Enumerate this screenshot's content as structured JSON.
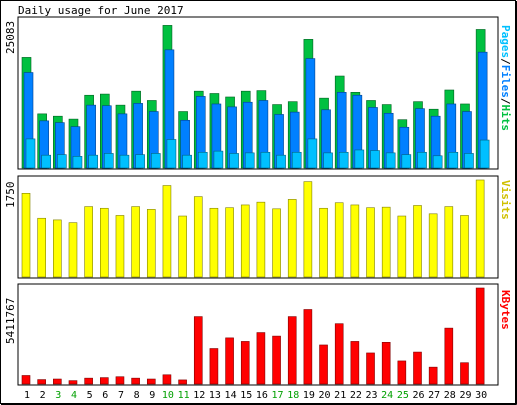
{
  "chart_data": [
    {
      "type": "bar",
      "panel": "hits-files-pages",
      "title": "Daily usage for June 2017",
      "ymax_label": "25083",
      "ylim": [
        0,
        25083
      ],
      "side_label": {
        "pages": "Pages",
        "files": "Files",
        "hits": "Hits",
        "sep": "/"
      },
      "colors": {
        "hits": "#00c040",
        "files": "#0080ff",
        "pages": "#00c0ff"
      },
      "categories": [
        "1",
        "2",
        "3",
        "4",
        "5",
        "6",
        "7",
        "8",
        "9",
        "10",
        "11",
        "12",
        "13",
        "14",
        "15",
        "16",
        "17",
        "18",
        "19",
        "20",
        "21",
        "22",
        "23",
        "24",
        "25",
        "26",
        "27",
        "28",
        "29",
        "30"
      ],
      "weekend_days": [
        "3",
        "4",
        "10",
        "11",
        "17",
        "18",
        "24",
        "25"
      ],
      "series": [
        {
          "key": "hits",
          "name": "Hits",
          "values": [
            19000,
            9300,
            8900,
            8400,
            12500,
            12700,
            10800,
            13200,
            11600,
            24500,
            9700,
            13200,
            12800,
            12200,
            13200,
            13300,
            10900,
            11400,
            22100,
            12000,
            15800,
            13000,
            11600,
            10900,
            8300,
            11400,
            10100,
            13400,
            11000,
            23800
          ]
        },
        {
          "key": "files",
          "name": "Files",
          "values": [
            16400,
            8100,
            7800,
            7100,
            10800,
            10700,
            9300,
            11100,
            9700,
            20300,
            8200,
            12300,
            11000,
            10500,
            11300,
            11600,
            9200,
            9600,
            18800,
            10000,
            13000,
            12500,
            10400,
            9400,
            7000,
            10200,
            8900,
            11000,
            9700,
            19900
          ]
        },
        {
          "key": "pages",
          "name": "Pages",
          "values": [
            5000,
            2200,
            2300,
            2000,
            2200,
            2500,
            2200,
            2300,
            2500,
            4900,
            2200,
            2700,
            2900,
            2500,
            2600,
            2700,
            2200,
            2700,
            5000,
            2600,
            2700,
            3100,
            3000,
            2600,
            2300,
            2700,
            2100,
            2700,
            2500,
            4800
          ]
        }
      ]
    },
    {
      "type": "bar",
      "panel": "visits",
      "ymax_label": "1750",
      "ylim": [
        0,
        1750
      ],
      "side_label": "Visits",
      "colors": {
        "visits": "#ffff00"
      },
      "categories": [
        "1",
        "2",
        "3",
        "4",
        "5",
        "6",
        "7",
        "8",
        "9",
        "10",
        "11",
        "12",
        "13",
        "14",
        "15",
        "16",
        "17",
        "18",
        "19",
        "20",
        "21",
        "22",
        "23",
        "24",
        "25",
        "26",
        "27",
        "28",
        "29",
        "30"
      ],
      "series": [
        {
          "key": "visits",
          "name": "Visits",
          "values": [
            1510,
            1060,
            1030,
            980,
            1270,
            1240,
            1110,
            1270,
            1220,
            1650,
            1100,
            1450,
            1240,
            1250,
            1300,
            1350,
            1230,
            1400,
            1720,
            1240,
            1340,
            1300,
            1250,
            1260,
            1100,
            1290,
            1140,
            1270,
            1110,
            1750
          ]
        }
      ]
    },
    {
      "type": "bar",
      "panel": "kbytes",
      "ymax_label": "5411767",
      "ylim": [
        0,
        5411767
      ],
      "side_label": "KBytes",
      "colors": {
        "kbytes": "#ff0000"
      },
      "categories": [
        "1",
        "2",
        "3",
        "4",
        "5",
        "6",
        "7",
        "8",
        "9",
        "10",
        "11",
        "12",
        "13",
        "14",
        "15",
        "16",
        "17",
        "18",
        "19",
        "20",
        "21",
        "22",
        "23",
        "24",
        "25",
        "26",
        "27",
        "28",
        "29",
        "30"
      ],
      "series": [
        {
          "key": "kbytes",
          "name": "KBytes",
          "values": [
            480000,
            250000,
            280000,
            190000,
            330000,
            360000,
            410000,
            330000,
            280000,
            520000,
            230000,
            3800000,
            2000000,
            2600000,
            2400000,
            2900000,
            2700000,
            3800000,
            4200000,
            2200000,
            3400000,
            2400000,
            1750000,
            2350000,
            1300000,
            1800000,
            950000,
            3150000,
            1200000,
            5411767
          ]
        }
      ]
    }
  ]
}
